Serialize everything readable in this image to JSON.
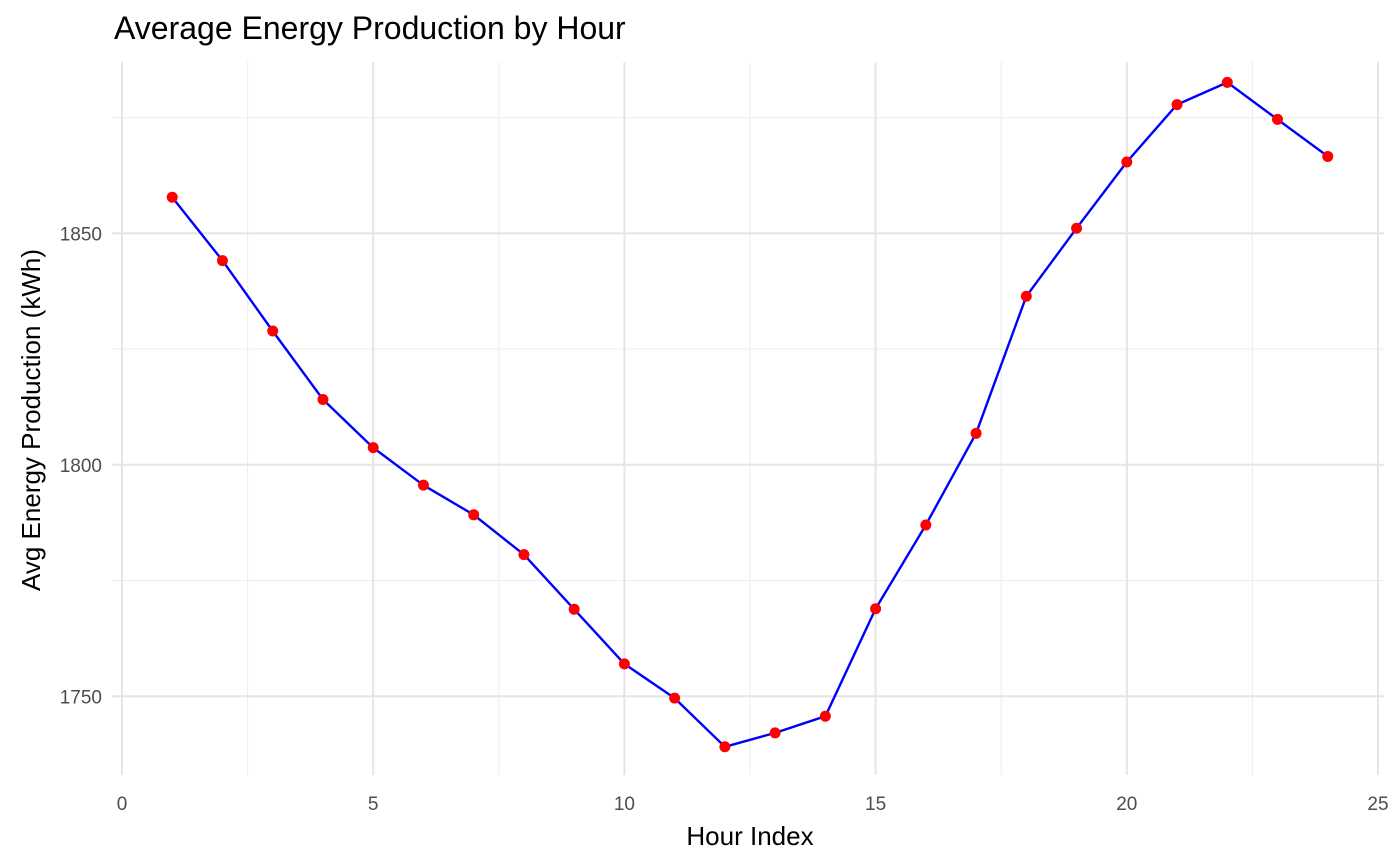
{
  "chart_data": {
    "type": "line",
    "title": "Average Energy Production by Hour",
    "xlabel": "Hour Index",
    "ylabel": "Avg Energy Production (kWh)",
    "xlim": [
      0,
      25
    ],
    "ylim": [
      1733,
      1887
    ],
    "x_ticks": [
      0,
      5,
      10,
      15,
      20,
      25
    ],
    "y_ticks": [
      1750,
      1800,
      1850
    ],
    "grid": true,
    "legend": "none",
    "line_color": "#0000ff",
    "point_color": "#ff0000",
    "series": [
      {
        "x": [
          1,
          2,
          3,
          4,
          5,
          6,
          7,
          8,
          9,
          10,
          11,
          12,
          13,
          14,
          15,
          16,
          17,
          18,
          19,
          20,
          21,
          22,
          23,
          24
        ],
        "values": [
          1857.8,
          1844.1,
          1828.9,
          1814.1,
          1803.7,
          1795.6,
          1789.2,
          1780.6,
          1768.8,
          1757.0,
          1749.6,
          1739.1,
          1742.1,
          1745.7,
          1768.9,
          1787.0,
          1806.8,
          1836.4,
          1851.1,
          1865.4,
          1877.8,
          1882.6,
          1874.6,
          1866.6
        ]
      }
    ]
  }
}
